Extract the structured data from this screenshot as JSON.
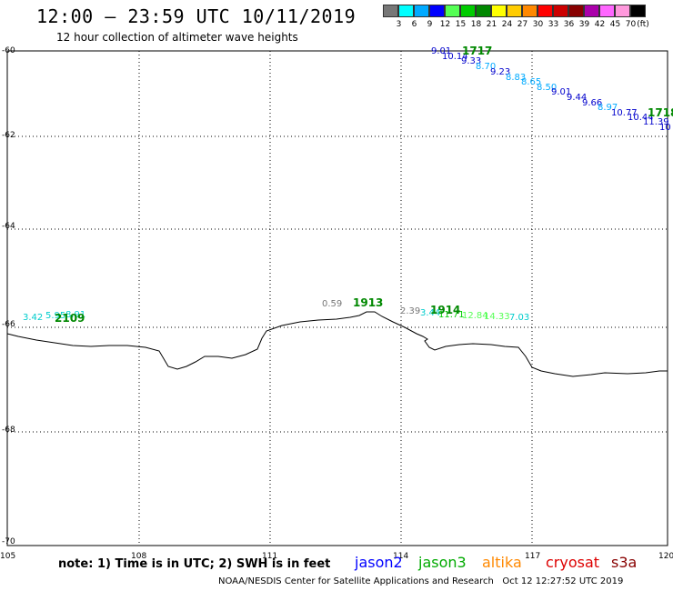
{
  "header": {
    "title": "12:00 – 23:59 UTC 10/11/2019",
    "subtitle": "12 hour collection of altimeter wave heights"
  },
  "scale": {
    "unit": "(ft)",
    "colors": [
      "#777777",
      "#00ffff",
      "#00aaff",
      "#0000ff",
      "#55ff55",
      "#00cc00",
      "#008800",
      "#ffff00",
      "#ffcc00",
      "#ff8800",
      "#ff0000",
      "#cc0000",
      "#880000",
      "#aa00aa",
      "#ff66ff",
      "#ff99dd",
      "#000000"
    ],
    "labels": [
      "3",
      "6",
      "9",
      "12",
      "15",
      "18",
      "21",
      "24",
      "27",
      "30",
      "33",
      "36",
      "39",
      "42",
      "45",
      "70"
    ]
  },
  "map": {
    "lon_ticks": [
      "105",
      "108",
      "111",
      "114",
      "117",
      "120"
    ],
    "lat_ticks": [
      "-60",
      "-62",
      "-64",
      "-66",
      "-68",
      "-70"
    ],
    "coast_color": "#000000",
    "grid_color": "#000000"
  },
  "tracks": [
    {
      "id": "t1717",
      "label": "1717",
      "label_color": "#008800",
      "points": [
        {
          "v": "9.01",
          "c": "#0000cc"
        },
        {
          "v": "10.14",
          "c": "#0000cc"
        },
        {
          "v": "9.33",
          "c": "#0000cc"
        },
        {
          "v": "8.70",
          "c": "#00aaff"
        },
        {
          "v": "9.23",
          "c": "#0000cc"
        },
        {
          "v": "8.83",
          "c": "#00aaff"
        },
        {
          "v": "8.65",
          "c": "#00aaff"
        },
        {
          "v": "8.50",
          "c": "#00aaff"
        },
        {
          "v": "9.01",
          "c": "#0000cc"
        },
        {
          "v": "9.44",
          "c": "#0000cc"
        },
        {
          "v": "9.66",
          "c": "#0000cc"
        },
        {
          "v": "8.97",
          "c": "#00aaff"
        },
        {
          "v": "10.77",
          "c": "#0000cc"
        },
        {
          "v": "10.44",
          "c": "#0000cc"
        },
        {
          "v": "11.39",
          "c": "#0000cc"
        },
        {
          "v": "10",
          "c": "#0000cc"
        }
      ]
    },
    {
      "id": "t1718",
      "label": "1718",
      "label_color": "#008800",
      "points": []
    },
    {
      "id": "t2109",
      "label": "2109",
      "label_color": "#008800",
      "points": [
        {
          "v": "3.42",
          "c": "#00cccc"
        },
        {
          "v": "5.95",
          "c": "#00cccc"
        },
        {
          "v": "8.91",
          "c": "#00cccc"
        }
      ]
    },
    {
      "id": "t1913",
      "label": "1913",
      "label_color": "#008800",
      "points": [
        {
          "v": "0.59",
          "c": "#777777"
        }
      ]
    },
    {
      "id": "t1914",
      "label": "1914",
      "label_color": "#008800",
      "points": [
        {
          "v": "2.39",
          "c": "#777777"
        },
        {
          "v": "3.44",
          "c": "#00cccc"
        },
        {
          "v": "11.71",
          "c": "#00cc00"
        },
        {
          "v": "12.84",
          "c": "#55ff55"
        },
        {
          "v": "14.33",
          "c": "#55ff55"
        },
        {
          "v": "7.03",
          "c": "#00cccc"
        }
      ]
    }
  ],
  "footer": {
    "note": "note: 1) Time is in UTC; 2) SWH is in feet",
    "satellites": [
      {
        "name": "jason2",
        "color": "#0000ff"
      },
      {
        "name": "jason3",
        "color": "#00aa00"
      },
      {
        "name": "altika",
        "color": "#ff8800"
      },
      {
        "name": "cryosat",
        "color": "#dd0000"
      },
      {
        "name": "s3a",
        "color": "#880000"
      }
    ],
    "credit": "NOAA/NESDIS Center for Satellite Applications and Research   Oct 12 12:27:52 UTC 2019"
  }
}
